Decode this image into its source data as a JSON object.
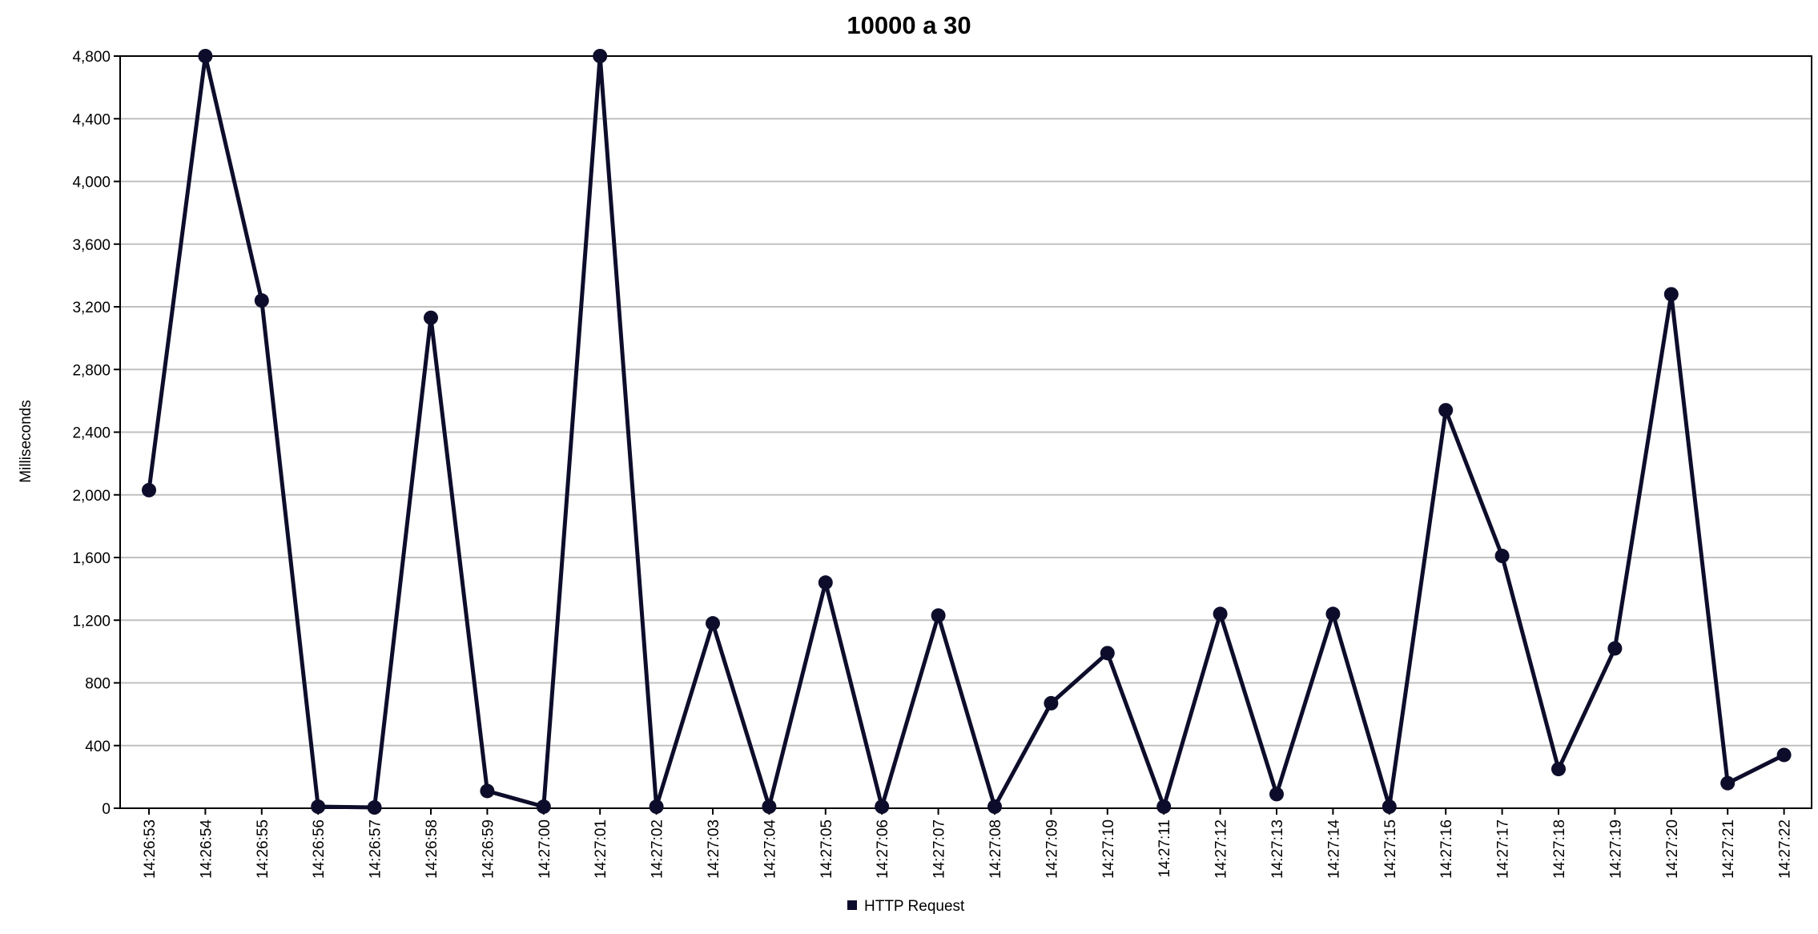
{
  "chart_data": {
    "type": "line",
    "title": "10000 a 30",
    "xlabel": "",
    "ylabel": "Milliseconds",
    "ylim": [
      0,
      4800
    ],
    "yticks": [
      "0",
      "400",
      "800",
      "1,200",
      "1,600",
      "2,000",
      "2,400",
      "2,800",
      "3,200",
      "3,600",
      "4,000",
      "4,400",
      "4,800"
    ],
    "ytick_values": [
      0,
      400,
      800,
      1200,
      1600,
      2000,
      2400,
      2800,
      3200,
      3600,
      4000,
      4400,
      4800
    ],
    "grid": true,
    "legend_position": "bottom",
    "categories": [
      "14:26:53",
      "14:26:54",
      "14:26:55",
      "14:26:56",
      "14:26:57",
      "14:26:58",
      "14:26:59",
      "14:27:00",
      "14:27:01",
      "14:27:02",
      "14:27:03",
      "14:27:04",
      "14:27:05",
      "14:27:06",
      "14:27:07",
      "14:27:08",
      "14:27:09",
      "14:27:10",
      "14:27:11",
      "14:27:12",
      "14:27:13",
      "14:27:14",
      "14:27:15",
      "14:27:16",
      "14:27:17",
      "14:27:18",
      "14:27:19",
      "14:27:20",
      "14:27:21",
      "14:27:22"
    ],
    "series": [
      {
        "name": "HTTP Request",
        "color": "#0d0d2b",
        "values": [
          2030,
          4820,
          3240,
          10,
          5,
          3130,
          110,
          10,
          4880,
          10,
          1180,
          10,
          1440,
          10,
          1230,
          10,
          670,
          990,
          10,
          1240,
          90,
          1240,
          10,
          2540,
          1610,
          250,
          1020,
          3280,
          160,
          340
        ]
      }
    ]
  }
}
